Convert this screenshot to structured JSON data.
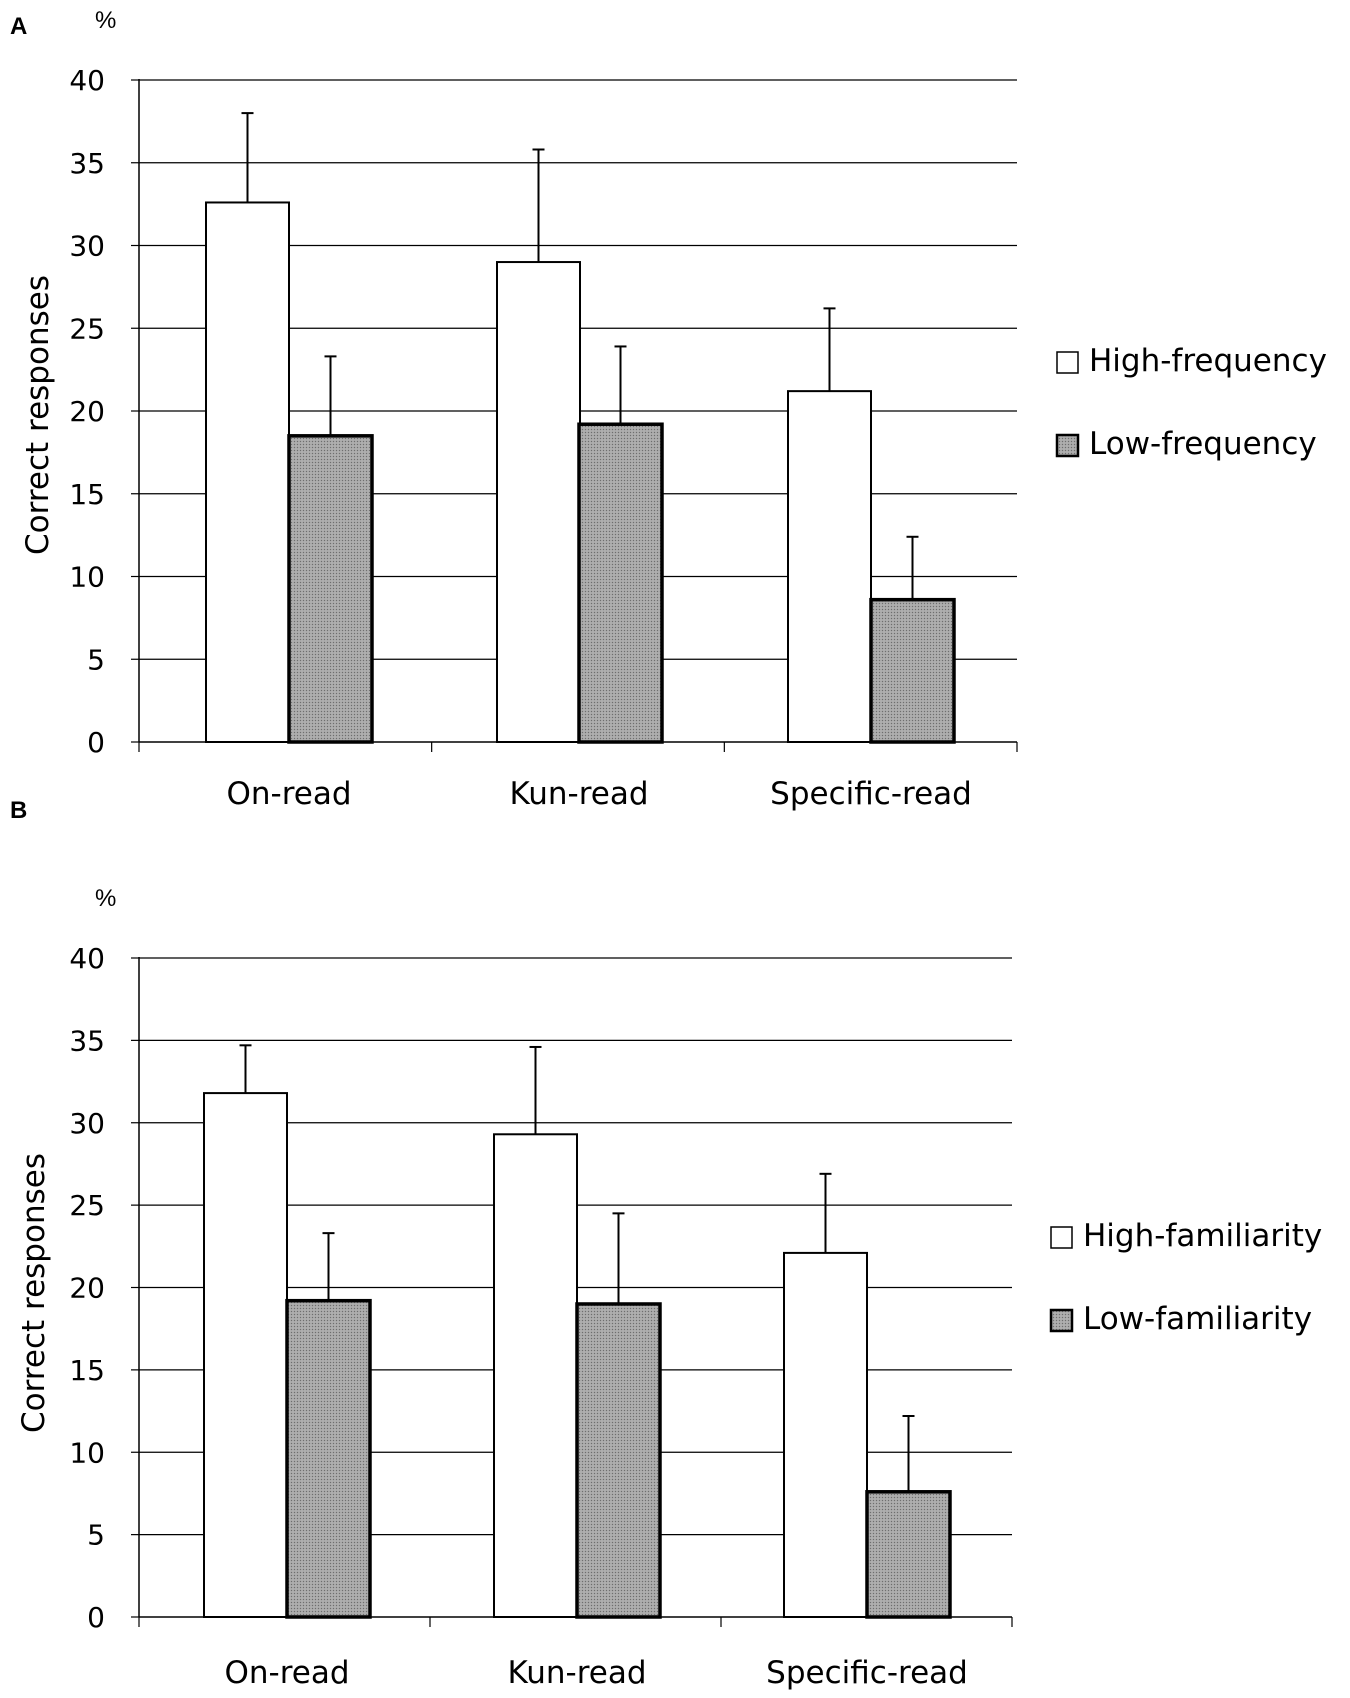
{
  "chart_data": [
    {
      "panel": "A",
      "type": "bar",
      "unit": "%",
      "ylabel": "Correct responses",
      "xlabel": "",
      "ylim": [
        0,
        40
      ],
      "yticks": [
        0,
        5,
        10,
        15,
        20,
        25,
        30,
        35,
        40
      ],
      "grid": true,
      "legend_position": "right",
      "categories": [
        "On-read",
        "Kun-read",
        "Specific-read"
      ],
      "series": [
        {
          "name": "High-frequency",
          "color": "#ffffff",
          "values": [
            32.6,
            29.0,
            21.2
          ],
          "errors": [
            5.4,
            6.8,
            5.0
          ]
        },
        {
          "name": "Low-frequency",
          "color": "#999999",
          "values": [
            18.5,
            19.2,
            8.6
          ],
          "errors": [
            4.8,
            4.7,
            3.8
          ]
        }
      ]
    },
    {
      "panel": "B",
      "type": "bar",
      "unit": "%",
      "ylabel": "Correct responses",
      "xlabel": "",
      "ylim": [
        0,
        40
      ],
      "yticks": [
        0,
        5,
        10,
        15,
        20,
        25,
        30,
        35,
        40
      ],
      "grid": true,
      "legend_position": "right",
      "categories": [
        "On-read",
        "Kun-read",
        "Specific-read"
      ],
      "series": [
        {
          "name": "High-familiarity",
          "color": "#ffffff",
          "values": [
            31.8,
            29.3,
            22.1
          ],
          "errors": [
            2.9,
            5.3,
            4.8
          ]
        },
        {
          "name": "Low-familiarity",
          "color": "#999999",
          "values": [
            19.2,
            19.0,
            7.6
          ],
          "errors": [
            4.1,
            5.5,
            4.6
          ]
        }
      ]
    }
  ]
}
